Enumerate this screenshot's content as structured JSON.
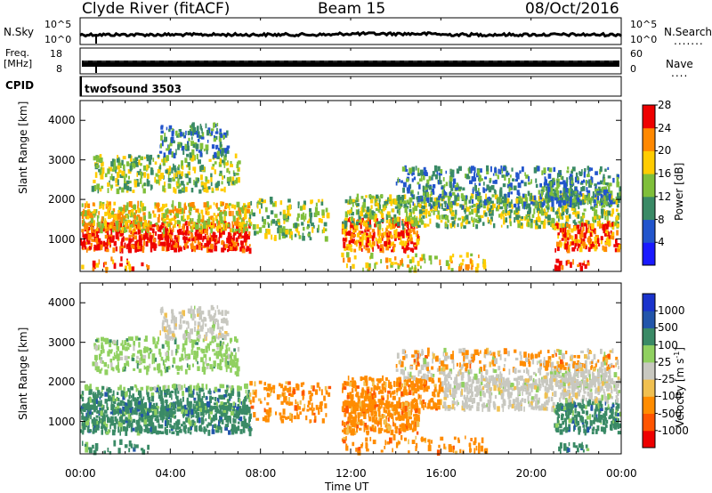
{
  "header": {
    "station_title": "Clyde River (fitACF)",
    "beam_title": "Beam 15",
    "date_title": "08/Oct/2016"
  },
  "strip": {
    "nsky_label": "N.Sky",
    "nsky_tick_top": "10^5",
    "nsky_tick_bottom": "10^0",
    "nsearch_label": "N.Search",
    "nsearch_tick_top": "10^5",
    "nsearch_tick_bottom": "10^0",
    "freq_label_1": "Freq.",
    "freq_label_2": "[MHz]",
    "freq_tick_top": "18",
    "freq_tick_bottom": "8",
    "nave_label": "Nave",
    "nave_tick_top": "60",
    "nave_tick_bottom": "0",
    "cpid_label": "CPID",
    "cpid_value": "twofsound 3503"
  },
  "chart_data": [
    {
      "type": "heatmap",
      "title": "",
      "variable": "Power",
      "unit": "dB",
      "colorbar_label": "Power [dB]",
      "colorbar_ticks": [
        "4",
        "8",
        "12",
        "16",
        "20",
        "24",
        "28"
      ],
      "colorbar_colors": [
        "#1a1aff",
        "#2255cc",
        "#3a8a66",
        "#7fbf3a",
        "#ffcc00",
        "#ff8800",
        "#ee0000"
      ],
      "ylabel": "Slant Range [km]",
      "ylim": [
        180,
        4500
      ],
      "yticks": [
        "1000",
        "2000",
        "3000",
        "4000"
      ],
      "xlabel": "",
      "xticks": [
        "00:00",
        "04:00",
        "08:00",
        "12:00",
        "16:00",
        "20:00",
        "00:00"
      ],
      "xlim_hours": [
        0,
        24
      ]
    },
    {
      "type": "heatmap",
      "title": "",
      "variable": "Velocity",
      "unit": "m s^-1",
      "colorbar_label": "Velocity [m s",
      "colorbar_label_sup": "-1",
      "colorbar_label_end": "]",
      "colorbar_ticks": [
        "-1000",
        "-500",
        "-100",
        "-25",
        "25",
        "100",
        "500",
        "1000"
      ],
      "colorbar_colors": [
        "#ee0000",
        "#ff5500",
        "#ff8c00",
        "#f0c050",
        "#c8c8c0",
        "#90d060",
        "#3a8a66",
        "#2255aa",
        "#1a33cc"
      ],
      "ylabel": "Slant Range [km]",
      "ylim": [
        180,
        4500
      ],
      "yticks": [
        "1000",
        "2000",
        "3000",
        "4000"
      ],
      "xlabel": "Time UT",
      "xticks": [
        "00:00",
        "04:00",
        "08:00",
        "12:00",
        "16:00",
        "20:00",
        "00:00"
      ],
      "xlim_hours": [
        0,
        24
      ]
    }
  ]
}
